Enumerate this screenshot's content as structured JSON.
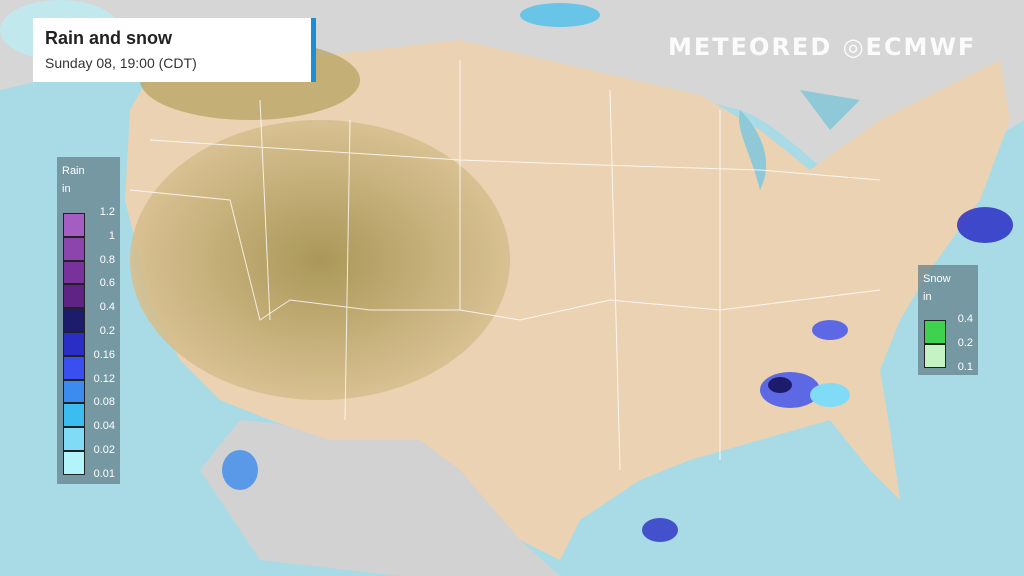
{
  "title": "Rain and snow",
  "subtitle": "Sunday 08, 19:00 (CDT)",
  "logos": {
    "brand": "METEORED",
    "partner": "ECMWF"
  },
  "rain_legend": {
    "title": "Rain",
    "unit": "in",
    "labels": [
      "1.2",
      "1",
      "0.8",
      "0.6",
      "0.4",
      "0.2",
      "0.16",
      "0.12",
      "0.08",
      "0.04",
      "0.02",
      "0.01"
    ],
    "colors": [
      "#a45ec2",
      "#8d45ae",
      "#77329b",
      "#5f2386",
      "#1d1c6c",
      "#2a2ec6",
      "#3a4ff0",
      "#3c8bee",
      "#3bbdf0",
      "#80dcf6",
      "#b3f4fb"
    ]
  },
  "snow_legend": {
    "title": "Snow",
    "unit": "in",
    "labels": [
      "0.4",
      "0.2",
      "0.1"
    ],
    "colors": [
      "#3fd24e",
      "#c6f3c3"
    ]
  },
  "colors": {
    "ocean": "#a9dbe6",
    "land": "#e9cfae",
    "terrain": "#a99552",
    "canada": "#c9c9c9",
    "title_accent": "#1a8fd6"
  }
}
